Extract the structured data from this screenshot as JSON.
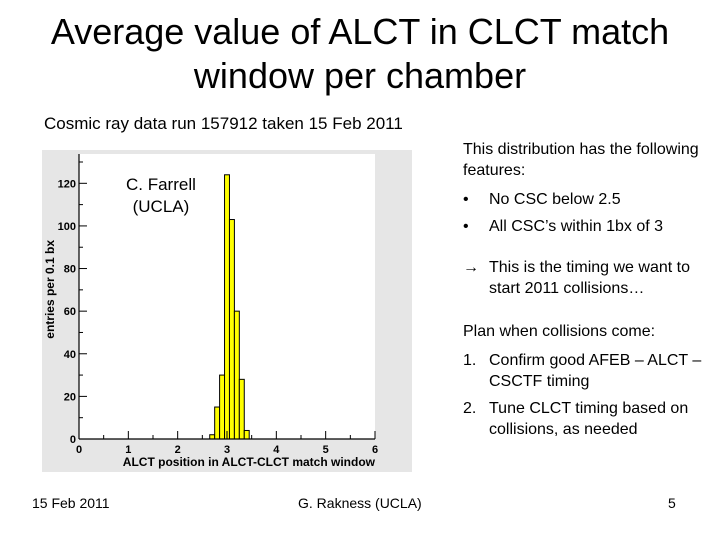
{
  "slide": {
    "title": "Average value of ALCT in CLCT match window per chamber",
    "subtitle": "Cosmic ray data run 157912 taken 15 Feb 2011",
    "author_note_line1": "C. Farrell",
    "author_note_line2": "(UCLA)"
  },
  "features": {
    "intro": "This distribution has the following features:",
    "bullets": [
      {
        "marker": "•",
        "text": "No CSC below 2.5"
      },
      {
        "marker": "•",
        "text": "All CSC’s within 1bx of 3"
      }
    ],
    "conclusion": "This is the timing we want to start 2011 collisions…",
    "arrow_icon": "right-arrow"
  },
  "plan": {
    "heading": "Plan when collisions come:",
    "items": [
      {
        "number": "1.",
        "text": "Confirm good AFEB – ALCT – CSCTF timing"
      },
      {
        "number": "2.",
        "text": "Tune CLCT timing based on collisions, as needed"
      }
    ]
  },
  "footer": {
    "date": "15 Feb 2011",
    "presenter": "G. Rakness (UCLA)",
    "page_number": "5"
  },
  "chart_data": {
    "type": "bar",
    "xlabel": "ALCT position in ALCT-CLCT match window",
    "ylabel": "entries per 0.1 bx",
    "xlim": [
      0,
      6
    ],
    "ylim": [
      0,
      130
    ],
    "x_ticks": [
      "0",
      "1",
      "2",
      "3",
      "4",
      "5",
      "6"
    ],
    "y_ticks": [
      "0",
      "20",
      "40",
      "60",
      "80",
      "100",
      "120"
    ],
    "bin_width": 0.1,
    "bins": [
      {
        "x": 2.7,
        "value": 2
      },
      {
        "x": 2.8,
        "value": 15
      },
      {
        "x": 2.9,
        "value": 30
      },
      {
        "x": 3.0,
        "value": 124
      },
      {
        "x": 3.1,
        "value": 103
      },
      {
        "x": 3.2,
        "value": 60
      },
      {
        "x": 3.3,
        "value": 28
      },
      {
        "x": 3.4,
        "value": 4
      }
    ],
    "fill_color": "#ffff00",
    "frame_color": "#e6e6e6",
    "grid": false
  }
}
